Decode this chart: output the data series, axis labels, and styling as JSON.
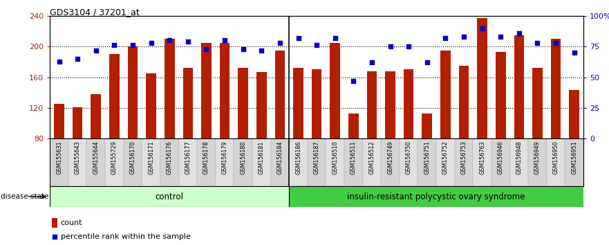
{
  "title": "GDS3104 / 37201_at",
  "samples": [
    "GSM155631",
    "GSM155643",
    "GSM155644",
    "GSM155729",
    "GSM156170",
    "GSM156171",
    "GSM156176",
    "GSM156177",
    "GSM156178",
    "GSM156179",
    "GSM156180",
    "GSM156181",
    "GSM156184",
    "GSM156186",
    "GSM156187",
    "GSM156510",
    "GSM156511",
    "GSM156512",
    "GSM156749",
    "GSM156750",
    "GSM156751",
    "GSM156752",
    "GSM156753",
    "GSM156763",
    "GSM156946",
    "GSM156948",
    "GSM156949",
    "GSM156950",
    "GSM156951"
  ],
  "bar_values": [
    125,
    121,
    138,
    190,
    200,
    165,
    210,
    172,
    205,
    205,
    172,
    167,
    195,
    172,
    170,
    205,
    113,
    168,
    168,
    170,
    113,
    195,
    175,
    237,
    193,
    215,
    172,
    210,
    143
  ],
  "percentile_values": [
    63,
    65,
    72,
    76,
    76,
    78,
    80,
    79,
    73,
    80,
    73,
    72,
    78,
    82,
    76,
    82,
    47,
    62,
    75,
    75,
    62,
    82,
    83,
    90,
    83,
    86,
    78,
    78,
    70
  ],
  "control_count": 13,
  "disease_label": "control",
  "disease2_label": "insulin-resistant polycystic ovary syndrome",
  "ylim_left": [
    80,
    240
  ],
  "ylim_right": [
    0,
    100
  ],
  "yticks_left": [
    80,
    120,
    160,
    200,
    240
  ],
  "yticks_right": [
    0,
    25,
    50,
    75,
    100
  ],
  "bar_color": "#b22000",
  "dot_color": "#0000cc",
  "control_bg": "#ccffcc",
  "disease_bg": "#44cc44",
  "bar_bottom": 80,
  "cell_colors": [
    "#d4d4d4",
    "#e0e0e0"
  ]
}
